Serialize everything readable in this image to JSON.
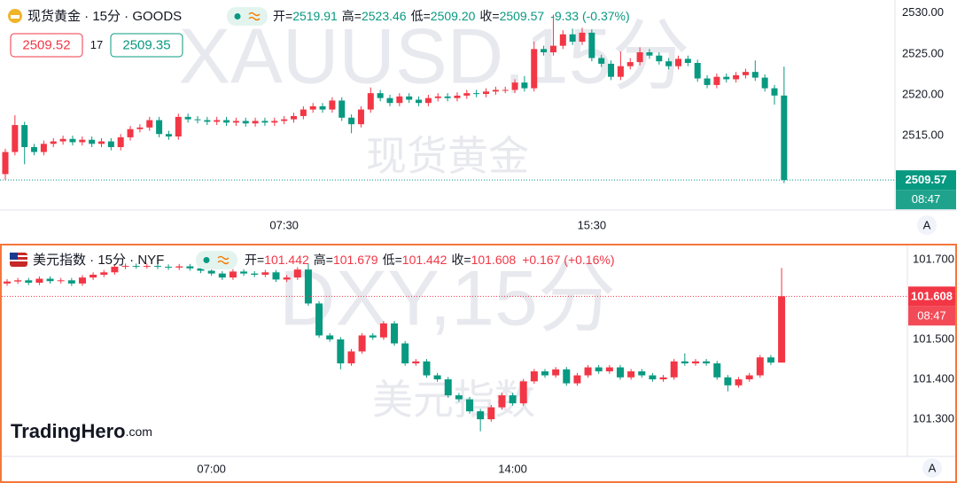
{
  "chart_data": [
    {
      "type": "candlestick",
      "symbol": "现货黄金 · 15分 · GOODS",
      "readout": [
        {
          "label": "开=",
          "value": "2519.91"
        },
        {
          "label": "高=",
          "value": "2523.46"
        },
        {
          "label": "低=",
          "value": "2509.20"
        },
        {
          "label": "收=",
          "value": "2509.57"
        }
      ],
      "change": "-9.33 (-0.37%)",
      "bid": "2509.52",
      "spread": "17",
      "ask": "2509.35",
      "watermark": "XAUUSD,15分",
      "watermark_name": "现货黄金",
      "price_line": 2509.57,
      "countdown": "08:47",
      "auto_button": "A",
      "up_color": "#f23645",
      "down_color": "#089981",
      "ylim": [
        2505.9,
        2531.6
      ],
      "yticks": [
        {
          "value": 2515,
          "label": "2515.00"
        },
        {
          "value": 2520,
          "label": "2520.00"
        },
        {
          "value": 2525,
          "label": "2525.00"
        },
        {
          "value": 2530,
          "label": "2530.00"
        }
      ],
      "categories": [
        null,
        null,
        null,
        null,
        null,
        null,
        null,
        null,
        null,
        null,
        null,
        null,
        null,
        null,
        null,
        null,
        null,
        null,
        null,
        null,
        null,
        null,
        null,
        null,
        null,
        null,
        null,
        null,
        null,
        "07:30",
        null,
        null,
        null,
        null,
        null,
        null,
        null,
        null,
        null,
        null,
        null,
        null,
        null,
        null,
        null,
        null,
        null,
        null,
        null,
        null,
        null,
        null,
        null,
        null,
        null,
        null,
        null,
        null,
        null,
        null,
        null,
        "15:30",
        null,
        null,
        null,
        null,
        null,
        null,
        null,
        null,
        null,
        null,
        null,
        null,
        null,
        null,
        null,
        null,
        null,
        null,
        null,
        null
      ],
      "open": [
        2510.3,
        2513.0,
        2516.3,
        2513.6,
        2513.0,
        2514.0,
        2514.3,
        2514.6,
        2514.2,
        2514.5,
        2514.0,
        2514.3,
        2513.6,
        2514.8,
        2515.8,
        2516.0,
        2516.9,
        2515.2,
        2514.9,
        2517.3,
        2517.0,
        2516.9,
        2516.7,
        2516.9,
        2516.6,
        2516.8,
        2516.5,
        2516.8,
        2516.6,
        2516.8,
        2517.0,
        2517.4,
        2518.2,
        2518.6,
        2518.2,
        2519.3,
        2517.2,
        2516.4,
        2518.2,
        2520.2,
        2519.6,
        2519.0,
        2519.8,
        2519.4,
        2519.0,
        2519.6,
        2519.8,
        2519.6,
        2519.9,
        2520.2,
        2520.1,
        2520.4,
        2520.6,
        2520.6,
        2521.5,
        2520.8,
        2525.6,
        2525.2,
        2526.0,
        2527.4,
        2526.5,
        2527.6,
        2524.5,
        2523.8,
        2522.2,
        2523.5,
        2524.0,
        2525.2,
        2524.8,
        2524.1,
        2523.5,
        2524.4,
        2523.9,
        2522.0,
        2521.2,
        2522.2,
        2521.9,
        2522.4,
        2522.8,
        2522.1,
        2520.8,
        2519.91
      ],
      "high": [
        2513.4,
        2517.5,
        2516.7,
        2514.0,
        2514.4,
        2514.7,
        2515.0,
        2515.0,
        2514.9,
        2514.9,
        2514.7,
        2514.7,
        2515.2,
        2516.2,
        2516.4,
        2517.3,
        2517.3,
        2515.6,
        2517.7,
        2517.7,
        2517.4,
        2517.3,
        2517.3,
        2517.3,
        2517.2,
        2517.2,
        2517.2,
        2517.2,
        2517.2,
        2517.4,
        2517.8,
        2518.6,
        2519.0,
        2519.0,
        2519.7,
        2519.7,
        2517.6,
        2518.6,
        2520.9,
        2520.6,
        2520.0,
        2520.2,
        2520.2,
        2519.8,
        2520.0,
        2520.2,
        2520.2,
        2520.3,
        2520.6,
        2520.6,
        2520.8,
        2521.0,
        2521.0,
        2521.9,
        2522.3,
        2526.5,
        2526.0,
        2529.8,
        2527.9,
        2528.1,
        2528.2,
        2528.0,
        2524.9,
        2524.2,
        2525.3,
        2524.5,
        2525.8,
        2525.6,
        2525.2,
        2524.5,
        2524.8,
        2524.8,
        2524.3,
        2522.4,
        2522.6,
        2522.6,
        2522.8,
        2523.2,
        2524.2,
        2522.5,
        2521.2,
        2523.46
      ],
      "low": [
        2509.6,
        2512.6,
        2511.5,
        2512.6,
        2512.6,
        2513.6,
        2513.9,
        2513.8,
        2513.8,
        2513.6,
        2513.6,
        2513.2,
        2513.2,
        2514.4,
        2515.4,
        2515.6,
        2514.8,
        2514.5,
        2514.5,
        2516.6,
        2516.5,
        2516.3,
        2516.3,
        2516.2,
        2516.2,
        2516.1,
        2516.1,
        2516.2,
        2516.2,
        2516.4,
        2516.6,
        2517.0,
        2517.8,
        2517.8,
        2517.8,
        2516.8,
        2515.3,
        2516.0,
        2517.8,
        2519.2,
        2518.6,
        2518.6,
        2519.0,
        2518.6,
        2518.6,
        2519.2,
        2519.2,
        2519.2,
        2519.5,
        2519.7,
        2519.7,
        2520.0,
        2520.2,
        2520.2,
        2520.4,
        2520.4,
        2524.8,
        2524.8,
        2525.6,
        2526.1,
        2526.1,
        2524.1,
        2523.4,
        2521.8,
        2521.8,
        2523.1,
        2523.6,
        2524.4,
        2523.7,
        2523.1,
        2523.1,
        2523.5,
        2521.6,
        2520.8,
        2520.8,
        2521.5,
        2521.5,
        2522.0,
        2521.7,
        2520.4,
        2518.8,
        2509.2
      ],
      "close": [
        2513.0,
        2516.3,
        2513.6,
        2513.0,
        2514.0,
        2514.3,
        2514.6,
        2514.2,
        2514.5,
        2514.0,
        2514.3,
        2513.6,
        2514.8,
        2515.8,
        2516.0,
        2516.9,
        2515.2,
        2514.9,
        2517.3,
        2517.0,
        2516.9,
        2516.7,
        2516.9,
        2516.6,
        2516.8,
        2516.5,
        2516.8,
        2516.6,
        2516.8,
        2517.0,
        2517.4,
        2518.2,
        2518.6,
        2518.2,
        2519.3,
        2517.2,
        2516.4,
        2518.2,
        2520.2,
        2519.6,
        2519.0,
        2519.8,
        2519.4,
        2519.0,
        2519.6,
        2519.8,
        2519.6,
        2519.9,
        2520.2,
        2520.1,
        2520.4,
        2520.6,
        2520.6,
        2521.5,
        2520.8,
        2525.6,
        2525.2,
        2526.0,
        2527.4,
        2526.5,
        2527.6,
        2524.5,
        2523.8,
        2522.2,
        2523.5,
        2524.0,
        2525.2,
        2524.8,
        2524.1,
        2523.5,
        2524.4,
        2523.9,
        2522.0,
        2521.2,
        2522.2,
        2521.9,
        2522.4,
        2522.8,
        2522.1,
        2520.8,
        2519.91,
        2509.57
      ]
    },
    {
      "type": "candlestick",
      "symbol": "美元指数 · 15分 · NYF",
      "readout": [
        {
          "label": "开=",
          "value": "101.442"
        },
        {
          "label": "高=",
          "value": "101.679"
        },
        {
          "label": "低=",
          "value": "101.442"
        },
        {
          "label": "收=",
          "value": "101.608"
        }
      ],
      "change": "+0.167 (+0.16%)",
      "watermark": "DXY,15分",
      "watermark_name": "美元指数",
      "price_line": 101.608,
      "countdown": "08:47",
      "auto_button": "A",
      "up_color": "#f23645",
      "down_color": "#089981",
      "ylim": [
        101.207,
        101.733
      ],
      "yticks": [
        {
          "value": 101.3,
          "label": "101.300"
        },
        {
          "value": 101.4,
          "label": "101.400"
        },
        {
          "value": 101.5,
          "label": "101.500"
        },
        {
          "value": 101.7,
          "label": "101.700"
        }
      ],
      "categories": [
        null,
        null,
        null,
        null,
        null,
        null,
        null,
        null,
        null,
        null,
        null,
        null,
        null,
        null,
        null,
        null,
        null,
        null,
        null,
        "07:00",
        null,
        null,
        null,
        null,
        null,
        null,
        null,
        null,
        null,
        null,
        null,
        null,
        null,
        null,
        null,
        null,
        null,
        null,
        null,
        null,
        null,
        null,
        null,
        null,
        null,
        null,
        null,
        "14:00",
        null,
        null,
        null,
        null,
        null,
        null,
        null,
        null,
        null,
        null,
        null,
        null,
        null,
        null,
        null,
        null,
        null,
        null,
        null,
        null,
        null,
        null,
        null,
        null,
        null
      ],
      "open": [
        101.64,
        101.645,
        101.648,
        101.642,
        101.652,
        101.646,
        101.648,
        101.64,
        101.655,
        101.662,
        101.668,
        101.682,
        101.684,
        101.683,
        101.684,
        101.682,
        101.68,
        101.683,
        101.678,
        101.672,
        101.665,
        101.655,
        101.67,
        101.665,
        101.662,
        101.668,
        101.65,
        101.655,
        101.675,
        101.59,
        101.51,
        101.5,
        101.44,
        101.47,
        101.51,
        101.505,
        101.54,
        101.49,
        101.44,
        101.445,
        101.41,
        101.4,
        101.36,
        101.35,
        101.32,
        101.3,
        101.33,
        101.36,
        101.34,
        101.395,
        101.42,
        101.41,
        101.425,
        101.39,
        101.41,
        101.43,
        101.42,
        101.43,
        101.405,
        101.42,
        101.41,
        101.4,
        101.405,
        101.445,
        101.44,
        101.445,
        101.44,
        101.405,
        101.385,
        101.4,
        101.41,
        101.455,
        101.442
      ],
      "high": [
        101.651,
        101.654,
        101.654,
        101.658,
        101.658,
        101.654,
        101.654,
        101.661,
        101.668,
        101.674,
        101.688,
        101.69,
        101.69,
        101.69,
        101.69,
        101.688,
        101.689,
        101.689,
        101.684,
        101.678,
        101.671,
        101.676,
        101.676,
        101.671,
        101.674,
        101.674,
        101.661,
        101.681,
        101.69,
        101.596,
        101.516,
        101.506,
        101.476,
        101.516,
        101.516,
        101.546,
        101.546,
        101.496,
        101.451,
        101.451,
        101.416,
        101.406,
        101.366,
        101.356,
        101.326,
        101.336,
        101.366,
        101.366,
        101.401,
        101.426,
        101.426,
        101.431,
        101.431,
        101.416,
        101.436,
        101.436,
        101.436,
        101.436,
        101.426,
        101.426,
        101.416,
        101.411,
        101.451,
        101.465,
        101.451,
        101.451,
        101.446,
        101.411,
        101.406,
        101.416,
        101.461,
        101.461,
        101.679
      ],
      "low": [
        101.634,
        101.639,
        101.636,
        101.636,
        101.64,
        101.64,
        101.634,
        101.634,
        101.649,
        101.656,
        101.662,
        101.676,
        101.677,
        101.677,
        101.676,
        101.674,
        101.674,
        101.672,
        101.666,
        101.659,
        101.649,
        101.649,
        101.659,
        101.656,
        101.656,
        101.644,
        101.644,
        101.649,
        101.584,
        101.504,
        101.494,
        101.425,
        101.434,
        101.464,
        101.499,
        101.499,
        101.484,
        101.434,
        101.434,
        101.404,
        101.394,
        101.354,
        101.344,
        101.314,
        101.27,
        101.294,
        101.324,
        101.334,
        101.334,
        101.389,
        101.404,
        101.404,
        101.384,
        101.384,
        101.404,
        101.414,
        101.414,
        101.399,
        101.399,
        101.404,
        101.394,
        101.394,
        101.399,
        101.434,
        101.434,
        101.434,
        101.399,
        101.37,
        101.379,
        101.394,
        101.404,
        101.436,
        101.442
      ],
      "close": [
        101.645,
        101.648,
        101.642,
        101.652,
        101.646,
        101.648,
        101.64,
        101.655,
        101.662,
        101.668,
        101.682,
        101.684,
        101.683,
        101.684,
        101.682,
        101.68,
        101.683,
        101.678,
        101.672,
        101.665,
        101.655,
        101.67,
        101.665,
        101.662,
        101.668,
        101.65,
        101.655,
        101.675,
        101.59,
        101.51,
        101.5,
        101.44,
        101.47,
        101.51,
        101.505,
        101.54,
        101.49,
        101.44,
        101.445,
        101.41,
        101.4,
        101.36,
        101.35,
        101.32,
        101.3,
        101.33,
        101.36,
        101.34,
        101.395,
        101.42,
        101.41,
        101.425,
        101.39,
        101.41,
        101.43,
        101.42,
        101.43,
        101.405,
        101.42,
        101.41,
        101.4,
        101.405,
        101.445,
        101.44,
        101.445,
        101.44,
        101.405,
        101.385,
        101.4,
        101.41,
        101.455,
        101.442,
        101.608
      ]
    }
  ],
  "logo": {
    "name": "TradingHero",
    "suffix": ".com"
  }
}
